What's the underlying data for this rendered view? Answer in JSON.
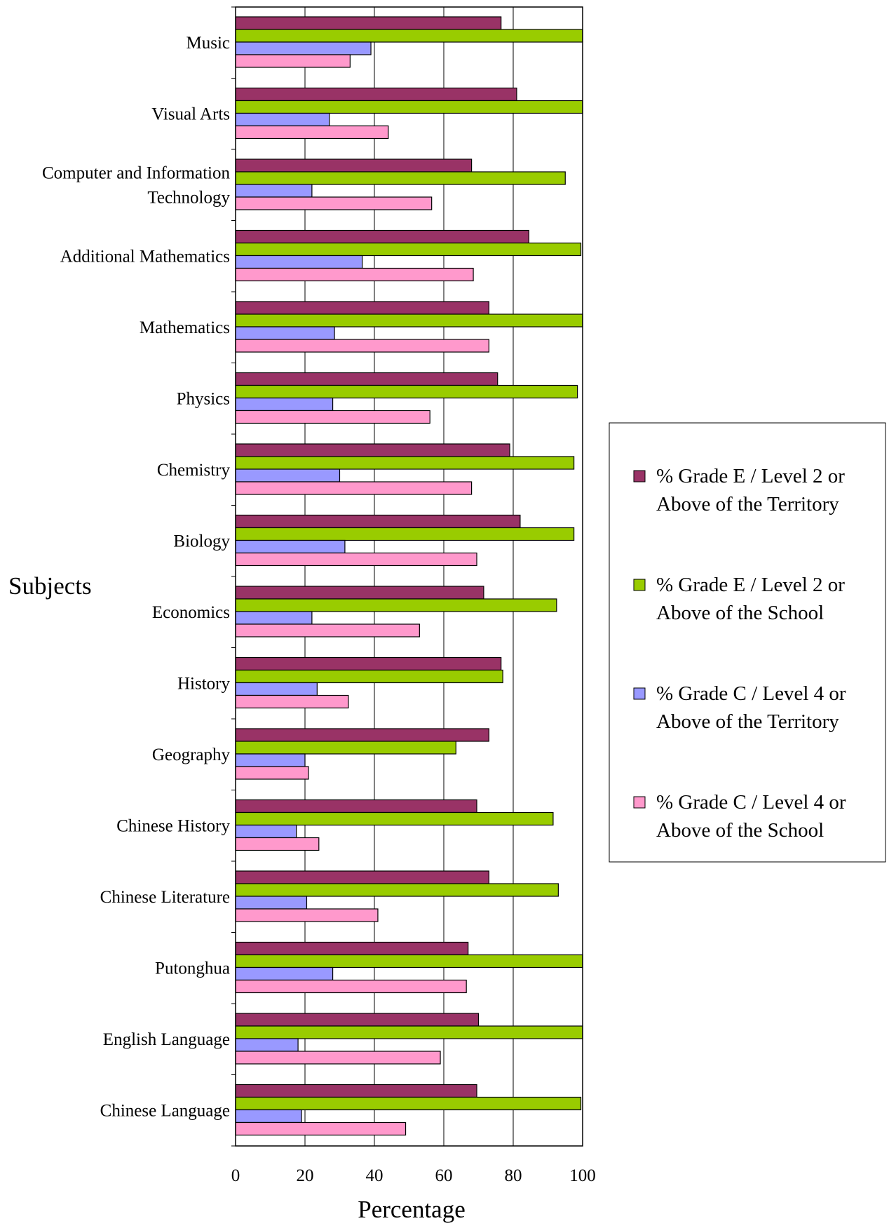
{
  "chart_data": {
    "type": "bar",
    "orientation": "horizontal",
    "xlabel": "Percentage",
    "ylabel": "Subjects",
    "xlim": [
      0,
      100
    ],
    "xticks": [
      "0",
      "20",
      "40",
      "60",
      "80",
      "100"
    ],
    "grid": "vertical",
    "legend_position": "right",
    "categories": [
      [
        "Music"
      ],
      [
        "Visual Arts"
      ],
      [
        "Computer and Information",
        "Technology"
      ],
      [
        "Additional Mathematics"
      ],
      [
        "Mathematics"
      ],
      [
        "Physics"
      ],
      [
        "Chemistry"
      ],
      [
        "Biology"
      ],
      [
        "Economics"
      ],
      [
        "History"
      ],
      [
        "Geography"
      ],
      [
        "Chinese History"
      ],
      [
        "Chinese Literature"
      ],
      [
        "Putonghua"
      ],
      [
        "English Language"
      ],
      [
        "Chinese Language"
      ]
    ],
    "series": [
      {
        "name": "% Grade E / Level 2 or Above of the Territory",
        "legend_lines": [
          "% Grade E / Level 2 or",
          "Above of the Territory"
        ],
        "color": "#993366",
        "values": [
          76.5,
          81,
          68,
          84.5,
          73,
          75.5,
          79,
          82,
          71.5,
          76.5,
          73,
          69.5,
          73,
          67,
          70,
          69.5
        ]
      },
      {
        "name": "% Grade E / Level 2 or Above of the School",
        "legend_lines": [
          "% Grade E / Level 2 or",
          "Above of the School"
        ],
        "color": "#99CC00",
        "values": [
          100,
          100,
          95,
          99.5,
          100,
          98.5,
          97.5,
          97.5,
          92.5,
          77,
          63.5,
          91.5,
          93,
          100,
          100,
          99.5
        ]
      },
      {
        "name": "% Grade C / Level 4 or Above of the Territory",
        "legend_lines": [
          "% Grade C / Level 4 or",
          "Above of the Territory"
        ],
        "color": "#9999FF",
        "values": [
          39,
          27,
          22,
          36.5,
          28.5,
          28,
          30,
          31.5,
          22,
          23.5,
          20,
          17.5,
          20.5,
          28,
          18,
          19
        ]
      },
      {
        "name": "% Grade C / Level 4 or Above of the School",
        "legend_lines": [
          "% Grade C / Level 4 or",
          "Above of the School"
        ],
        "color": "#FF99CC",
        "values": [
          33,
          44,
          56.5,
          68.5,
          73,
          56,
          68,
          69.5,
          53,
          32.5,
          21,
          24,
          41,
          66.5,
          59,
          49
        ]
      }
    ]
  }
}
